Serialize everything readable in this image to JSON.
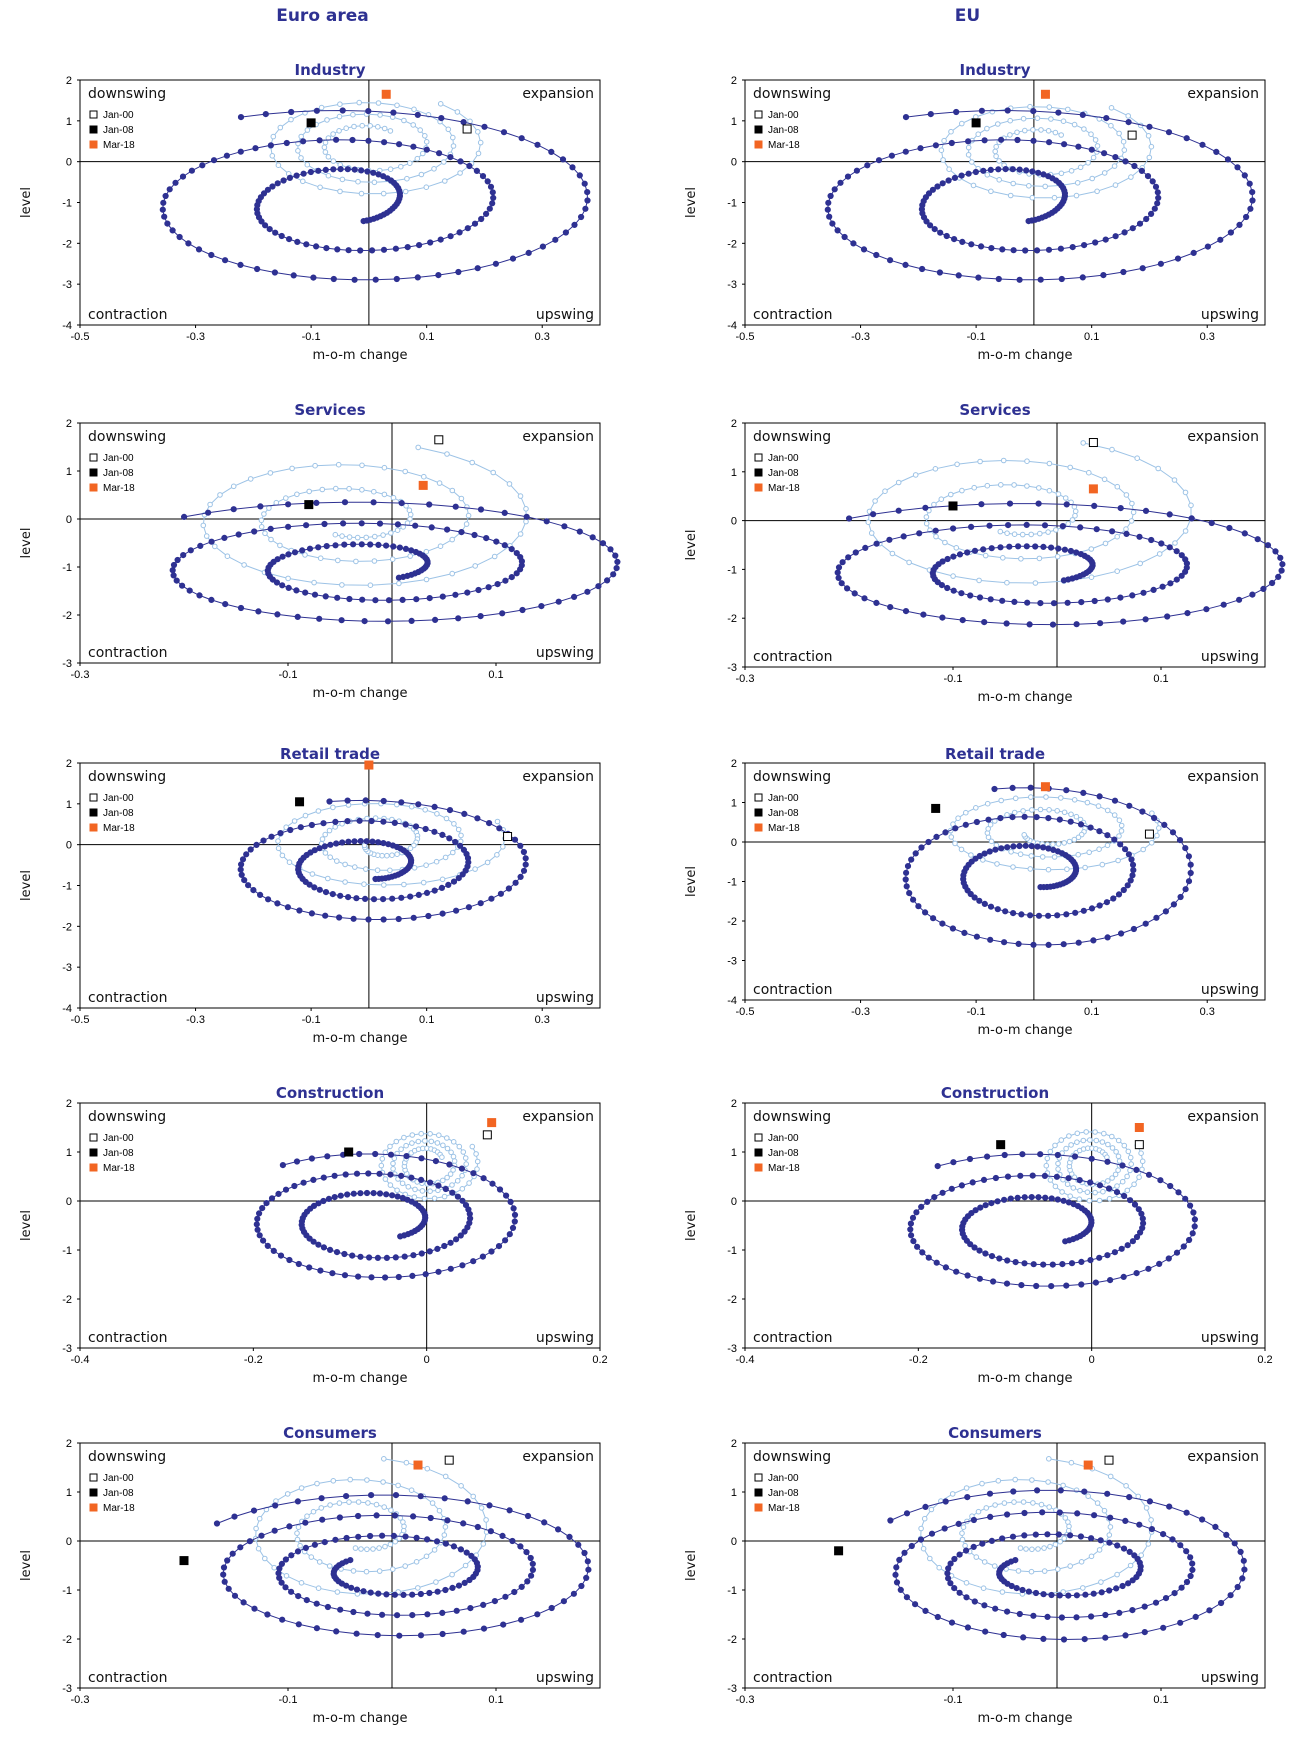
{
  "columns": {
    "left": "Euro area",
    "right": "EU"
  },
  "legend": [
    {
      "label": "Jan-00",
      "fill": "#ffffff",
      "stroke": "#000000"
    },
    {
      "label": "Jan-08",
      "fill": "#000000",
      "stroke": "#000000"
    },
    {
      "label": "Mar-18",
      "fill": "#f26522",
      "stroke": "#f26522"
    }
  ],
  "quadrants": {
    "top_left": "downswing",
    "top_right": "expansion",
    "bottom_left": "contraction",
    "bottom_right": "upswing"
  },
  "axis_labels": {
    "x": "m-o-m change",
    "y": "level"
  },
  "colors": {
    "title": "#2e3192",
    "early_series": "#9dc3e6",
    "late_series": "#2e3192",
    "mar18": "#f26522"
  },
  "chart_data": [
    {
      "type": "scatter",
      "column": "Euro area",
      "title": "Industry",
      "xlabel": "m-o-m change",
      "ylabel": "level",
      "xlim": [
        -0.5,
        0.4
      ],
      "ylim": [
        -4,
        2
      ],
      "xticks": [
        -0.5,
        -0.3,
        -0.1,
        0.1,
        0.3
      ],
      "yticks": [
        -4,
        -3,
        -2,
        -1,
        0,
        1,
        2
      ],
      "markers": {
        "Jan-00": [
          0.17,
          0.8
        ],
        "Jan-08": [
          -0.1,
          0.95
        ],
        "Mar-18": [
          0.03,
          1.65
        ]
      },
      "early": {
        "cx": 0.0,
        "cy": 0.4,
        "r0x": 0.2,
        "r0y": 1.3,
        "r1x": 0.06,
        "r1y": 0.45,
        "turns": 3.0,
        "phase": 0.9,
        "n": 90,
        "dir": -1
      },
      "late": {
        "cx": -0.03,
        "cy": -1.0,
        "r0x": 0.46,
        "r0y": 2.3,
        "r1x": 0.05,
        "r1y": 0.5,
        "turns": 2.5,
        "phase": 2.0,
        "n": 160,
        "dir": -1
      }
    },
    {
      "type": "scatter",
      "column": "EU",
      "title": "Industry",
      "xlabel": "m-o-m change",
      "ylabel": "level",
      "xlim": [
        -0.5,
        0.4
      ],
      "ylim": [
        -4,
        2
      ],
      "xticks": [
        -0.5,
        -0.3,
        -0.1,
        0.1,
        0.3
      ],
      "yticks": [
        -4,
        -3,
        -2,
        -1,
        0,
        1,
        2
      ],
      "markers": {
        "Jan-00": [
          0.17,
          0.65
        ],
        "Jan-08": [
          -0.1,
          0.95
        ],
        "Mar-18": [
          0.02,
          1.65
        ]
      },
      "early": {
        "cx": 0.01,
        "cy": 0.3,
        "r0x": 0.2,
        "r0y": 1.3,
        "r1x": 0.06,
        "r1y": 0.45,
        "turns": 3.0,
        "phase": 0.9,
        "n": 90,
        "dir": -1
      },
      "late": {
        "cx": -0.03,
        "cy": -1.0,
        "r0x": 0.46,
        "r0y": 2.3,
        "r1x": 0.05,
        "r1y": 0.5,
        "turns": 2.5,
        "phase": 2.0,
        "n": 160,
        "dir": -1
      }
    },
    {
      "type": "scatter",
      "column": "Euro area",
      "title": "Services",
      "xlabel": "m-o-m change",
      "ylabel": "level",
      "xlim": [
        -0.3,
        0.2
      ],
      "ylim": [
        -3,
        2
      ],
      "xticks": [
        -0.3,
        -0.1,
        0.1
      ],
      "yticks": [
        -3,
        -2,
        -1,
        0,
        1,
        2
      ],
      "markers": {
        "Jan-00": [
          0.045,
          1.65
        ],
        "Jan-08": [
          -0.08,
          0.3
        ],
        "Mar-18": [
          0.03,
          0.7
        ]
      },
      "early": {
        "cx": -0.04,
        "cy": 0.0,
        "r0x": 0.18,
        "r0y": 1.6,
        "r1x": 0.04,
        "r1y": 0.35,
        "turns": 2.5,
        "phase": 1.2,
        "n": 90,
        "dir": -1
      },
      "late": {
        "cx": -0.02,
        "cy": -1.0,
        "r0x": 0.27,
        "r0y": 1.4,
        "r1x": 0.04,
        "r1y": 0.3,
        "turns": 2.5,
        "phase": 2.3,
        "n": 150,
        "dir": -1
      }
    },
    {
      "type": "scatter",
      "column": "EU",
      "title": "Services",
      "xlabel": "m-o-m change",
      "ylabel": "level",
      "xlim": [
        -0.3,
        0.2
      ],
      "ylim": [
        -3,
        2
      ],
      "xticks": [
        -0.3,
        -0.1,
        0.1
      ],
      "yticks": [
        -3,
        -2,
        -1,
        0,
        1,
        2
      ],
      "markers": {
        "Jan-00": [
          0.035,
          1.6
        ],
        "Jan-08": [
          -0.1,
          0.3
        ],
        "Mar-18": [
          0.035,
          0.65
        ]
      },
      "early": {
        "cx": -0.04,
        "cy": 0.1,
        "r0x": 0.18,
        "r0y": 1.6,
        "r1x": 0.04,
        "r1y": 0.35,
        "turns": 2.5,
        "phase": 1.2,
        "n": 90,
        "dir": -1
      },
      "late": {
        "cx": -0.02,
        "cy": -1.0,
        "r0x": 0.27,
        "r0y": 1.4,
        "r1x": 0.04,
        "r1y": 0.3,
        "turns": 2.5,
        "phase": 2.3,
        "n": 150,
        "dir": -1
      }
    },
    {
      "type": "scatter",
      "column": "Euro area",
      "title": "Retail trade",
      "xlabel": "m-o-m change",
      "ylabel": "level",
      "xlim": [
        -0.5,
        0.4
      ],
      "ylim": [
        -4,
        2
      ],
      "xticks": [
        -0.5,
        -0.3,
        -0.1,
        0.1,
        0.3
      ],
      "yticks": [
        -4,
        -3,
        -2,
        -1,
        0,
        1,
        2
      ],
      "markers": {
        "Jan-00": [
          0.24,
          0.2
        ],
        "Jan-08": [
          -0.12,
          1.05
        ],
        "Mar-18": [
          0.0,
          1.95
        ]
      },
      "early": {
        "cx": 0.02,
        "cy": 0.1,
        "r0x": 0.22,
        "r0y": 1.2,
        "r1x": 0.03,
        "r1y": 0.3,
        "turns": 2.5,
        "phase": 0.4,
        "n": 90,
        "dir": -1
      },
      "late": {
        "cx": 0.0,
        "cy": -0.5,
        "r0x": 0.3,
        "r0y": 1.6,
        "r1x": 0.05,
        "r1y": 0.35,
        "turns": 2.5,
        "phase": 1.8,
        "n": 150,
        "dir": -1
      }
    },
    {
      "type": "scatter",
      "column": "EU",
      "title": "Retail trade",
      "xlabel": "m-o-m change",
      "ylabel": "level",
      "xlim": [
        -0.5,
        0.4
      ],
      "ylim": [
        -4,
        2
      ],
      "xticks": [
        -0.5,
        -0.3,
        -0.1,
        0.1,
        0.3
      ],
      "yticks": [
        -4,
        -3,
        -2,
        -1,
        0,
        1,
        2
      ],
      "markers": {
        "Jan-00": [
          0.2,
          0.2
        ],
        "Jan-08": [
          -0.17,
          0.85
        ],
        "Mar-18": [
          0.02,
          1.4
        ]
      },
      "early": {
        "cx": 0.02,
        "cy": 0.3,
        "r0x": 0.2,
        "r0y": 1.1,
        "r1x": 0.04,
        "r1y": 0.3,
        "turns": 2.5,
        "phase": 0.4,
        "n": 90,
        "dir": -1
      },
      "late": {
        "cx": 0.0,
        "cy": -0.8,
        "r0x": 0.3,
        "r0y": 2.2,
        "r1x": 0.05,
        "r1y": 0.35,
        "turns": 2.5,
        "phase": 1.8,
        "n": 150,
        "dir": -1
      }
    },
    {
      "type": "scatter",
      "column": "Euro area",
      "title": "Construction",
      "xlabel": "m-o-m change",
      "ylabel": "level",
      "xlim": [
        -0.4,
        0.2
      ],
      "ylim": [
        -3,
        2
      ],
      "xticks": [
        -0.4,
        -0.2,
        0,
        0.2
      ],
      "yticks": [
        -3,
        -2,
        -1,
        0,
        1,
        2
      ],
      "markers": {
        "Jan-00": [
          0.07,
          1.35
        ],
        "Jan-08": [
          -0.09,
          1.0
        ],
        "Mar-18": [
          0.075,
          1.6
        ]
      },
      "early": {
        "cx": 0.0,
        "cy": 0.75,
        "r0x": 0.06,
        "r0y": 0.75,
        "r1x": 0.02,
        "r1y": 0.3,
        "turns": 3.0,
        "phase": 0.5,
        "n": 90,
        "dir": -1
      },
      "late": {
        "cx": -0.06,
        "cy": -0.4,
        "r0x": 0.18,
        "r0y": 1.4,
        "r1x": 0.05,
        "r1y": 0.4,
        "turns": 2.5,
        "phase": 2.2,
        "n": 150,
        "dir": -1
      }
    },
    {
      "type": "scatter",
      "column": "EU",
      "title": "Construction",
      "xlabel": "m-o-m change",
      "ylabel": "level",
      "xlim": [
        -0.4,
        0.2
      ],
      "ylim": [
        -3,
        2
      ],
      "xticks": [
        -0.4,
        -0.2,
        0,
        0.2
      ],
      "yticks": [
        -3,
        -2,
        -1,
        0,
        1,
        2
      ],
      "markers": {
        "Jan-00": [
          0.055,
          1.15
        ],
        "Jan-08": [
          -0.105,
          1.15
        ],
        "Mar-18": [
          0.055,
          1.5
        ]
      },
      "early": {
        "cx": 0.0,
        "cy": 0.75,
        "r0x": 0.06,
        "r0y": 0.8,
        "r1x": 0.02,
        "r1y": 0.3,
        "turns": 3.0,
        "phase": 0.5,
        "n": 90,
        "dir": -1
      },
      "late": {
        "cx": -0.06,
        "cy": -0.5,
        "r0x": 0.2,
        "r0y": 1.5,
        "r1x": 0.05,
        "r1y": 0.4,
        "turns": 2.5,
        "phase": 2.2,
        "n": 150,
        "dir": -1
      }
    },
    {
      "type": "scatter",
      "column": "Euro area",
      "title": "Consumers",
      "xlabel": "m-o-m change",
      "ylabel": "level",
      "xlim": [
        -0.3,
        0.2
      ],
      "ylim": [
        -3,
        2
      ],
      "xticks": [
        -0.3,
        -0.1,
        0.1
      ],
      "yticks": [
        -3,
        -2,
        -1,
        0,
        1,
        2
      ],
      "markers": {
        "Jan-00": [
          0.055,
          1.65
        ],
        "Jan-08": [
          -0.2,
          -0.4
        ],
        "Mar-18": [
          0.025,
          1.55
        ]
      },
      "early": {
        "cx": -0.03,
        "cy": 0.2,
        "r0x": 0.13,
        "r0y": 1.5,
        "r1x": 0.03,
        "r1y": 0.35,
        "turns": 2.5,
        "phase": 1.4,
        "n": 90,
        "dir": -1
      },
      "late": {
        "cx": 0.0,
        "cy": -0.6,
        "r0x": 0.21,
        "r0y": 1.6,
        "r1x": 0.05,
        "r1y": 0.35,
        "turns": 3.0,
        "phase": 2.5,
        "n": 160,
        "dir": -1
      }
    },
    {
      "type": "scatter",
      "column": "EU",
      "title": "Consumers",
      "xlabel": "m-o-m change",
      "ylabel": "level",
      "xlim": [
        -0.3,
        0.2
      ],
      "ylim": [
        -3,
        2
      ],
      "xticks": [
        -0.3,
        -0.1,
        0.1
      ],
      "yticks": [
        -3,
        -2,
        -1,
        0,
        1,
        2
      ],
      "markers": {
        "Jan-00": [
          0.05,
          1.65
        ],
        "Jan-08": [
          -0.21,
          -0.2
        ],
        "Mar-18": [
          0.03,
          1.55
        ]
      },
      "early": {
        "cx": -0.03,
        "cy": 0.2,
        "r0x": 0.13,
        "r0y": 1.5,
        "r1x": 0.03,
        "r1y": 0.35,
        "turns": 2.5,
        "phase": 1.4,
        "n": 90,
        "dir": -1
      },
      "late": {
        "cx": 0.0,
        "cy": -0.6,
        "r0x": 0.2,
        "r0y": 1.7,
        "r1x": 0.05,
        "r1y": 0.35,
        "turns": 3.0,
        "phase": 2.5,
        "n": 160,
        "dir": -1
      }
    }
  ]
}
